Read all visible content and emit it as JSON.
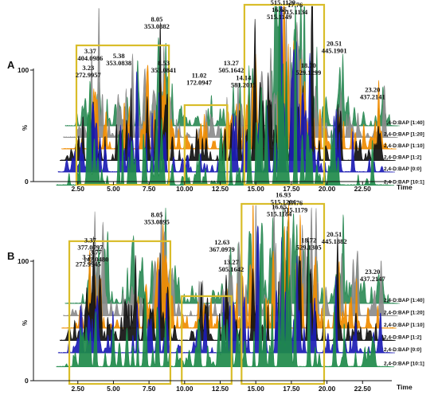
{
  "chart_data": [
    {
      "type": "line",
      "panel_label": "A",
      "xlabel": "Time",
      "ylabel": "%",
      "y_tick_labels": [
        "100",
        "0"
      ],
      "x_tick_labels": [
        "2.50",
        "5.00",
        "7.50",
        "10.00",
        "12.50",
        "15.00",
        "17.50",
        "20.00",
        "22.50"
      ],
      "xlim": [
        0.5,
        24.5
      ],
      "series": [
        {
          "name": "2,4-D:BAP [1:40]",
          "color": "#2e8b57"
        },
        {
          "name": "2,4-D:BAP [1:20]",
          "color": "#8c8c8c"
        },
        {
          "name": "2,4-D:BAP [1:10]",
          "color": "#f08c00"
        },
        {
          "name": "2,4-D:BAP [1:2]",
          "color": "#111111"
        },
        {
          "name": "2,4-D:BAP [0:0]",
          "color": "#1c1cb4"
        },
        {
          "name": "2,4-D:BAP [10:1]",
          "color": "#1e8a4a"
        }
      ],
      "highlight_ranges": [
        [
          2.4,
          8.9
        ],
        [
          10.0,
          13.0
        ],
        [
          14.2,
          19.8
        ]
      ],
      "annotations": [
        {
          "rt": "16.91",
          "mz": "515.1129",
          "x": 16.91,
          "top": 0.98
        },
        {
          "rt": "17.76",
          "mz": "515.1134",
          "x": 17.76,
          "top": 0.9
        },
        {
          "rt": "16.65",
          "mz": "515.1149",
          "x": 16.65,
          "top": 0.86
        },
        {
          "rt": "8.05",
          "mz": "353.0882",
          "x": 8.05,
          "top": 0.78
        },
        {
          "rt": "20.51",
          "mz": "445.1901",
          "x": 20.51,
          "top": 0.58
        },
        {
          "rt": "3.37",
          "mz": "404.0986",
          "x": 3.37,
          "top": 0.52
        },
        {
          "rt": "5.38",
          "mz": "353.0838",
          "x": 5.38,
          "top": 0.48
        },
        {
          "rt": "13.27",
          "mz": "505.1642",
          "x": 13.27,
          "top": 0.42
        },
        {
          "rt": "18.70",
          "mz": "529.1299",
          "x": 18.7,
          "top": 0.4
        },
        {
          "rt": "3.23",
          "mz": "272.9957",
          "x": 3.23,
          "top": 0.38
        },
        {
          "rt": "8.53",
          "mz": "353.0841",
          "x": 8.53,
          "top": 0.42
        },
        {
          "rt": "11.02",
          "mz": "172.0947",
          "x": 11.02,
          "top": 0.32
        },
        {
          "rt": "14.14",
          "mz": "581.2015",
          "x": 14.14,
          "top": 0.3
        },
        {
          "rt": "23.20",
          "mz": "437.2141",
          "x": 23.2,
          "top": 0.2
        }
      ]
    },
    {
      "type": "line",
      "panel_label": "B",
      "xlabel": "Time",
      "ylabel": "%",
      "y_tick_labels": [
        "100",
        "0"
      ],
      "x_tick_labels": [
        "2.50",
        "5.00",
        "7.50",
        "10.00",
        "12.50",
        "15.00",
        "17.50",
        "20.00",
        "22.50"
      ],
      "xlim": [
        0.5,
        24.5
      ],
      "series": [
        {
          "name": "2,4-D:BAP [1:40]",
          "color": "#2e8b57"
        },
        {
          "name": "2,4-D:BAP [1:20]",
          "color": "#8c8c8c"
        },
        {
          "name": "2,4-D:BAP [1:10]",
          "color": "#f08c00"
        },
        {
          "name": "2,4-D:BAP [1:2]",
          "color": "#111111"
        },
        {
          "name": "2,4-D:BAP [0:0]",
          "color": "#1c1cb4"
        },
        {
          "name": "2,4-D:BAP [10:1]",
          "color": "#1e8a4a"
        }
      ],
      "highlight_ranges": [
        [
          1.9,
          9.0
        ],
        [
          9.8,
          13.3
        ],
        [
          14.0,
          19.8
        ]
      ],
      "annotations": [
        {
          "rt": "16.93",
          "mz": "515.1204",
          "x": 16.93,
          "top": 0.98
        },
        {
          "rt": "17.76",
          "mz": "515.1179",
          "x": 17.76,
          "top": 0.9
        },
        {
          "rt": "16.65",
          "mz": "515.1184",
          "x": 16.65,
          "top": 0.86
        },
        {
          "rt": "8.05",
          "mz": "353.0895",
          "x": 8.05,
          "top": 0.78
        },
        {
          "rt": "20.51",
          "mz": "445.1882",
          "x": 20.51,
          "top": 0.58
        },
        {
          "rt": "18.72",
          "mz": "529.1305",
          "x": 18.72,
          "top": 0.52
        },
        {
          "rt": "3.37",
          "mz": "377.0797",
          "x": 3.37,
          "top": 0.52
        },
        {
          "rt": "12.63",
          "mz": "367.0979",
          "x": 12.63,
          "top": 0.5
        },
        {
          "rt": "3.77",
          "mz": "142.0480",
          "x": 3.77,
          "top": 0.4
        },
        {
          "rt": "3.23",
          "mz": "272.9945",
          "x": 3.23,
          "top": 0.35
        },
        {
          "rt": "13.27",
          "mz": "505.1642",
          "x": 13.27,
          "top": 0.3
        },
        {
          "rt": "23.20",
          "mz": "437.2147",
          "x": 23.2,
          "top": 0.2
        }
      ]
    }
  ]
}
